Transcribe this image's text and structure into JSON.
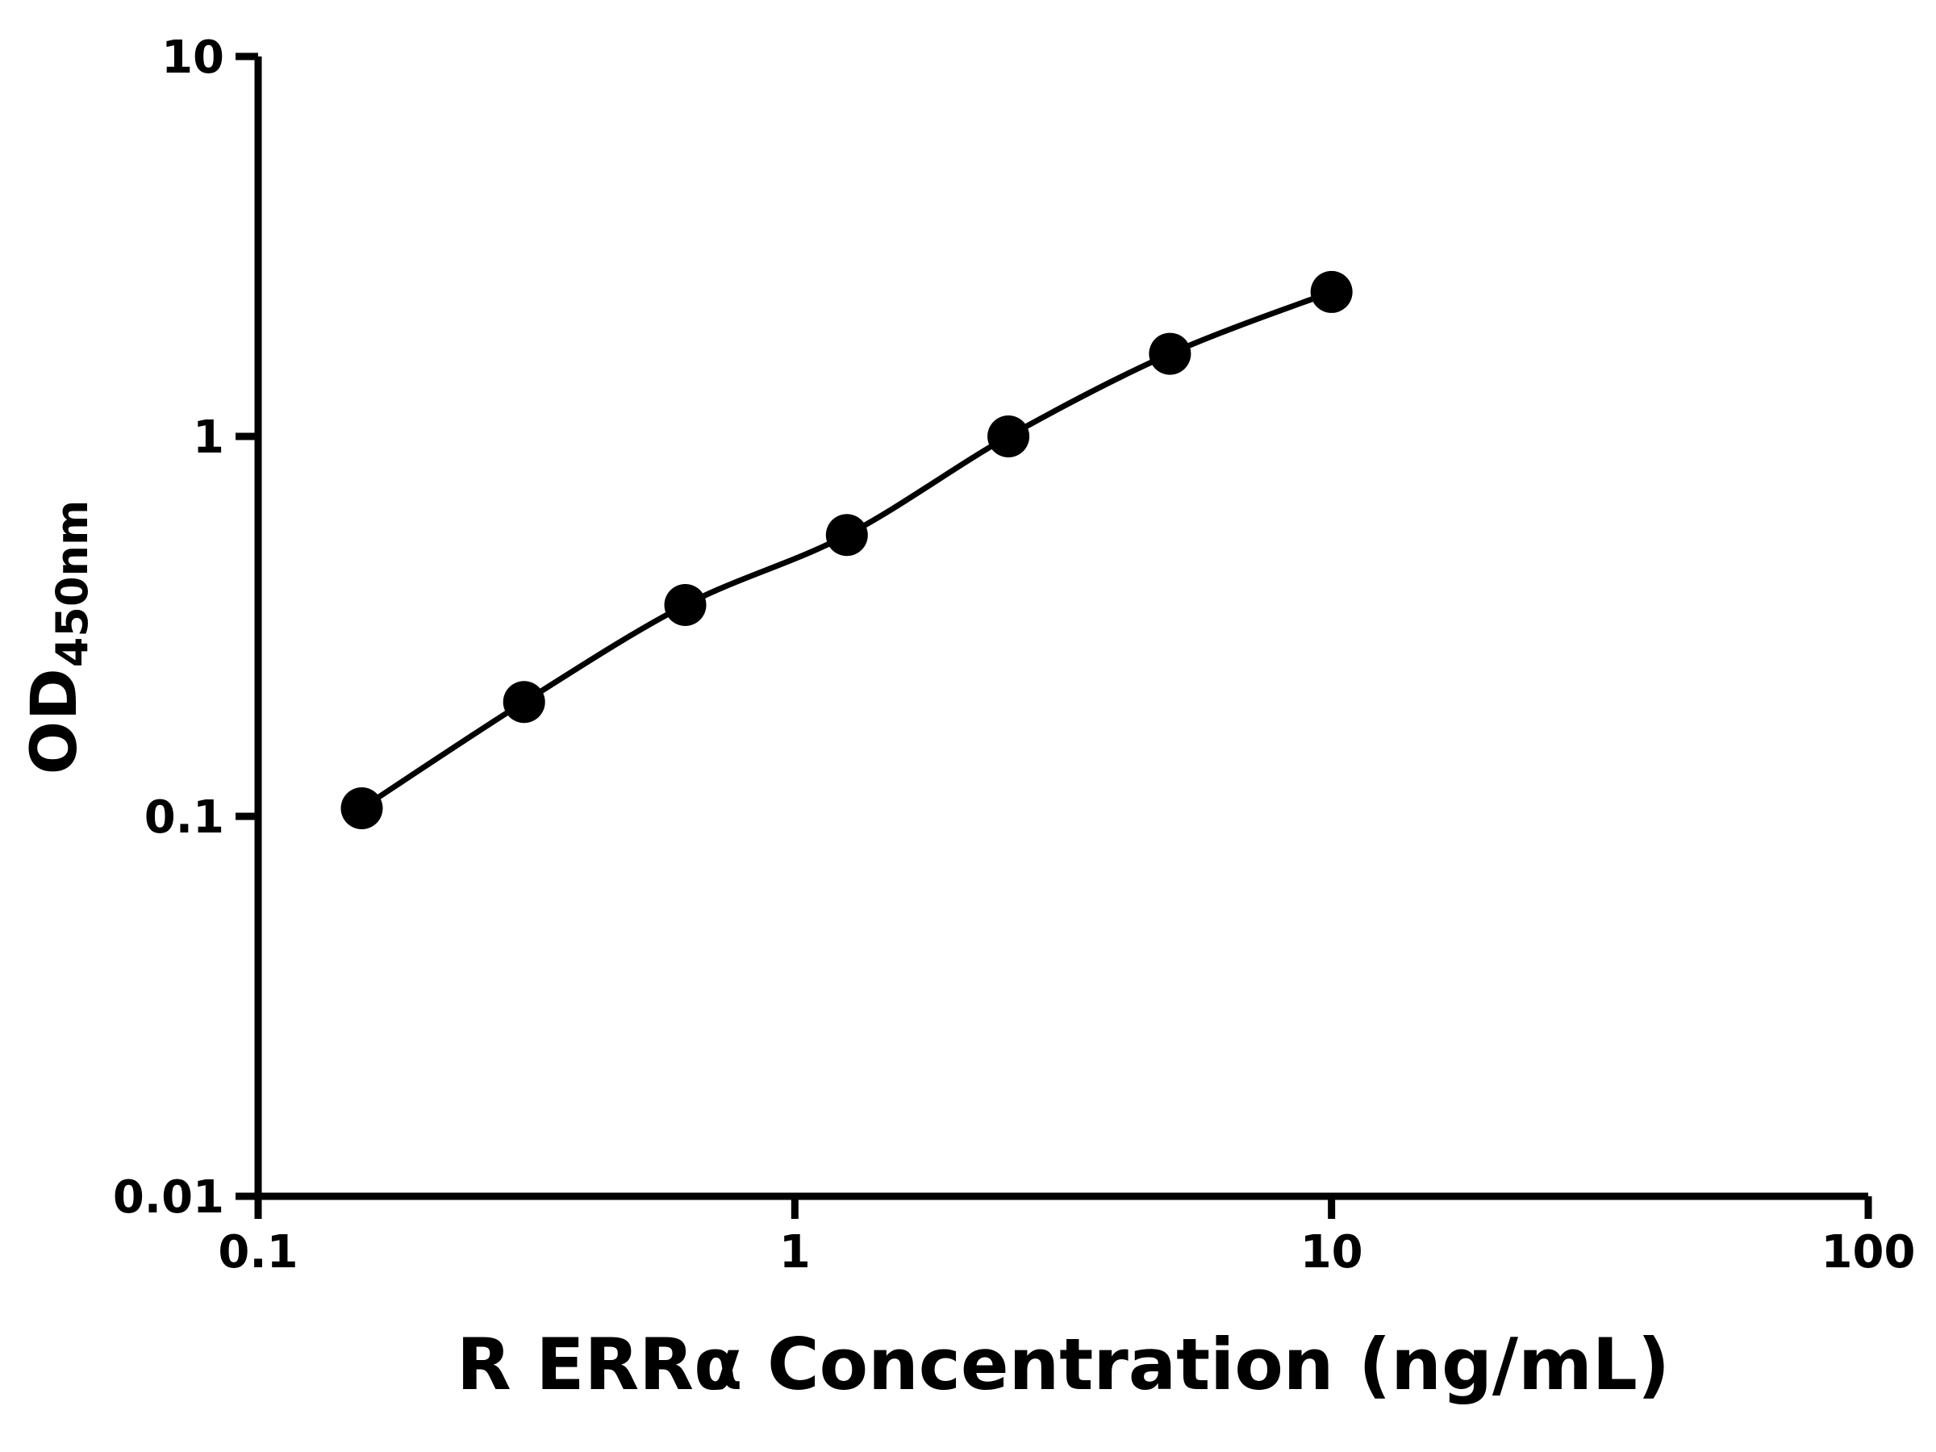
{
  "chart_data": {
    "type": "scatter",
    "subtype": "line-through-points-standard-curve",
    "title": "",
    "xlabel": "R ERRα Concentration (ng/mL)",
    "ylabel_main": "OD",
    "ylabel_sub": "450nm",
    "x_scale": "log",
    "y_scale": "log",
    "xlim": [
      0.1,
      100
    ],
    "ylim": [
      0.01,
      10
    ],
    "x_ticks": [
      {
        "value": 0.1,
        "label": "0.1"
      },
      {
        "value": 1,
        "label": "1"
      },
      {
        "value": 10,
        "label": "10"
      },
      {
        "value": 100,
        "label": "100"
      }
    ],
    "y_ticks": [
      {
        "value": 0.01,
        "label": "0.01"
      },
      {
        "value": 0.1,
        "label": "0.1"
      },
      {
        "value": 1,
        "label": "1"
      },
      {
        "value": 10,
        "label": "10"
      }
    ],
    "points": [
      {
        "x": 0.156,
        "y": 0.105
      },
      {
        "x": 0.313,
        "y": 0.2
      },
      {
        "x": 0.625,
        "y": 0.36
      },
      {
        "x": 1.25,
        "y": 0.55
      },
      {
        "x": 2.5,
        "y": 1.0
      },
      {
        "x": 5,
        "y": 1.65
      },
      {
        "x": 10,
        "y": 2.4
      }
    ],
    "marker_color": "#000000",
    "line_color": "#000000",
    "axis_color": "#000000",
    "background_color": "#ffffff",
    "layout": {
      "grid": false,
      "legend": false,
      "tick_direction": "out"
    }
  }
}
